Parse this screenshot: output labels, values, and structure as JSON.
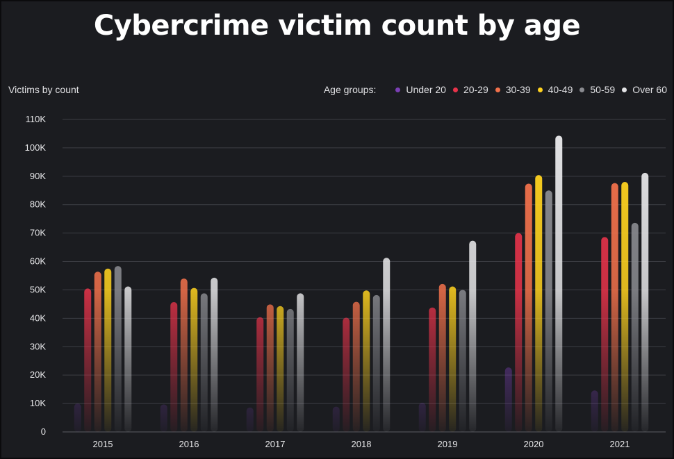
{
  "chart_data": {
    "type": "bar",
    "title": "Cybercrime victim count by age",
    "ylabel": "Victims by count",
    "legend_title": "Age groups:",
    "legend_position": "top-right",
    "categories": [
      "2015",
      "2016",
      "2017",
      "2018",
      "2019",
      "2020",
      "2021"
    ],
    "ylim": [
      0,
      110000
    ],
    "yticks": [
      {
        "value": 0,
        "label": "0"
      },
      {
        "value": 10000,
        "label": "10K"
      },
      {
        "value": 20000,
        "label": "20K"
      },
      {
        "value": 30000,
        "label": "30K"
      },
      {
        "value": 40000,
        "label": "40K"
      },
      {
        "value": 50000,
        "label": "50K"
      },
      {
        "value": 60000,
        "label": "60K"
      },
      {
        "value": 70000,
        "label": "70K"
      },
      {
        "value": 80000,
        "label": "80K"
      },
      {
        "value": 90000,
        "label": "90K"
      },
      {
        "value": 100000,
        "label": "100K"
      },
      {
        "value": 110000,
        "label": "110K"
      }
    ],
    "grid": true,
    "series": [
      {
        "name": "Under 20",
        "color": "#7b3fb5",
        "values": [
          10000,
          9700,
          8600,
          8900,
          10300,
          22700,
          14600
        ]
      },
      {
        "name": "20-29",
        "color": "#e8334a",
        "values": [
          50500,
          45700,
          40400,
          40200,
          43800,
          70000,
          68600
        ]
      },
      {
        "name": "30-39",
        "color": "#f2714b",
        "values": [
          56400,
          54000,
          44900,
          45800,
          52100,
          87400,
          87600
        ]
      },
      {
        "name": "40-49",
        "color": "#ffd21f",
        "values": [
          57500,
          50700,
          44300,
          49800,
          51200,
          90400,
          88000
        ]
      },
      {
        "name": "50-59",
        "color": "#8a8b90",
        "values": [
          58400,
          48800,
          43300,
          48200,
          50000,
          85000,
          73600
        ]
      },
      {
        "name": "Over 60",
        "color": "#e4e4e6",
        "values": [
          51200,
          54300,
          48800,
          61300,
          67300,
          104300,
          91200
        ]
      }
    ]
  }
}
